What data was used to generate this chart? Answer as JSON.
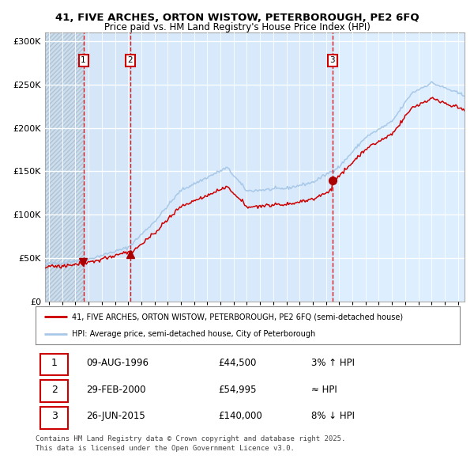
{
  "title1": "41, FIVE ARCHES, ORTON WISTOW, PETERBOROUGH, PE2 6FQ",
  "title2": "Price paid vs. HM Land Registry's House Price Index (HPI)",
  "legend_line1": "41, FIVE ARCHES, ORTON WISTOW, PETERBOROUGH, PE2 6FQ (semi-detached house)",
  "legend_line2": "HPI: Average price, semi-detached house, City of Peterborough",
  "transactions": [
    {
      "label": "1",
      "date_str": "09-AUG-1996",
      "year": 1996.61,
      "price": 44500,
      "note": "3% ↑ HPI"
    },
    {
      "label": "2",
      "date_str": "29-FEB-2000",
      "year": 2000.16,
      "price": 54995,
      "note": "≈ HPI"
    },
    {
      "label": "3",
      "date_str": "26-JUN-2015",
      "year": 2015.49,
      "price": 140000,
      "note": "8% ↓ HPI"
    }
  ],
  "footer": "Contains HM Land Registry data © Crown copyright and database right 2025.\nThis data is licensed under the Open Government Licence v3.0.",
  "hpi_color": "#a8c8e8",
  "price_color": "#cc0000",
  "marker_color": "#aa0000",
  "vline_color": "#dd0000",
  "plot_bg_color": "#ddeeff",
  "hatch_bg_color": "#ccdded",
  "ylim": [
    0,
    310000
  ],
  "yticks": [
    0,
    50000,
    100000,
    150000,
    200000,
    250000,
    300000
  ],
  "xlim_start": 1993.7,
  "xlim_end": 2025.5
}
